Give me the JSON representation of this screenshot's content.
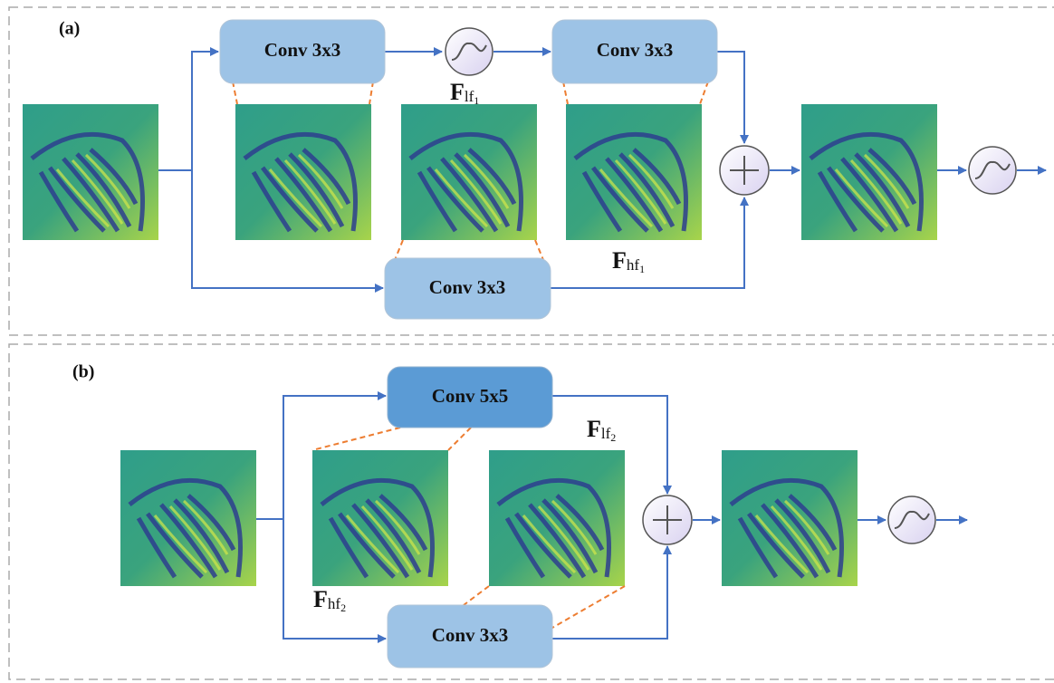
{
  "panel_a": {
    "label": "(a)",
    "conv_top_left": "Conv 3x3",
    "conv_top_right": "Conv 3x3",
    "conv_bottom": "Conv 3x3",
    "f_lf": {
      "symbol": "F",
      "sub": "lf",
      "index": "1"
    },
    "f_hf": {
      "symbol": "F",
      "sub": "hf",
      "index": "1"
    }
  },
  "panel_b": {
    "label": "(b)",
    "conv_top": "Conv 5x5",
    "conv_bottom": "Conv 3x3",
    "f_lf": {
      "symbol": "F",
      "sub": "lf",
      "index": "2"
    },
    "f_hf": {
      "symbol": "F",
      "sub": "hf",
      "index": "2"
    }
  }
}
